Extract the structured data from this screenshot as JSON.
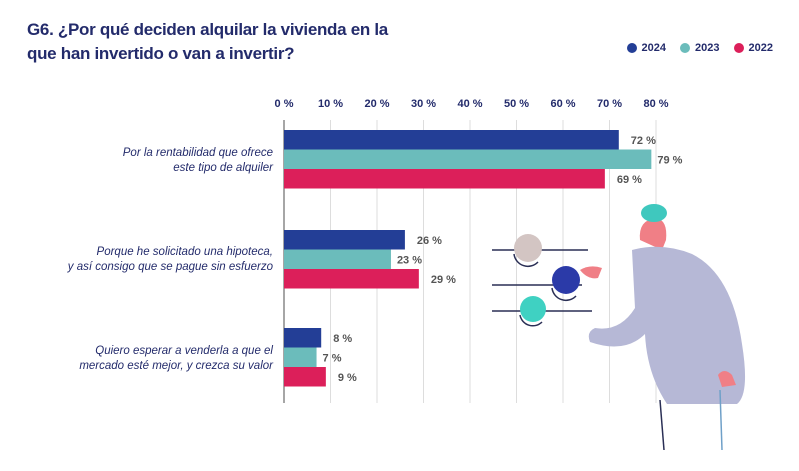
{
  "chart_data": {
    "type": "bar",
    "orientation": "horizontal",
    "title": "G6. ¿Por qué deciden alquilar la vivienda en la que han invertido o van a invertir?",
    "categories": [
      "Por la rentabilidad que ofrece este tipo de alquiler",
      "Porque he solicitado una hipoteca, y así consigo que se pague sin esfuerzo",
      "Quiero esperar a venderla a que el mercado esté mejor, y crezca su valor"
    ],
    "category_lines": [
      [
        "Por la rentabilidad que ofrece",
        "este tipo de alquiler"
      ],
      [
        "Porque he solicitado una hipoteca,",
        "y así consigo que se pague sin esfuerzo"
      ],
      [
        "Quiero esperar a venderla a que el",
        "mercado esté mejor, y crezca su valor"
      ]
    ],
    "series": [
      {
        "name": "2024",
        "color": "#233e96",
        "values": [
          72,
          26,
          8
        ]
      },
      {
        "name": "2023",
        "color": "#6bbcbb",
        "values": [
          79,
          23,
          7
        ]
      },
      {
        "name": "2022",
        "color": "#dc1f5a",
        "values": [
          69,
          29,
          9
        ]
      }
    ],
    "xlim": [
      0,
      80
    ],
    "xticks": [
      "0 %",
      "10 %",
      "20 %",
      "30 %",
      "40 %",
      "50 %",
      "60 %",
      "70 %",
      "80 %"
    ],
    "value_suffix": " %",
    "grid": true,
    "legend_position": "top-right",
    "xlabel": "",
    "ylabel": ""
  }
}
